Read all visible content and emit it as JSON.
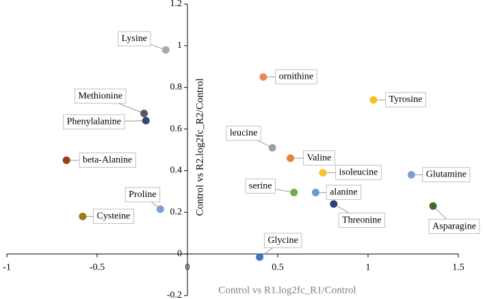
{
  "chart_data": {
    "type": "scatter",
    "xlabel": "Control vs R1.log2fc_R1/Control",
    "ylabel": "Control vs R2.log2fc_R2/Control",
    "labels": [
      "Lysine",
      "ornithine",
      "Tyrosine",
      "Methionine",
      "Phenylalanine",
      "leucine",
      "Valine",
      "beta-Alanine",
      "isoleucine",
      "Glutamine",
      "serine",
      "alanine",
      "Threonine",
      "Asparagine",
      "Proline",
      "Cysteine",
      "Glycine"
    ],
    "x": [
      -0.12,
      0.42,
      1.03,
      -0.24,
      -0.23,
      0.47,
      0.57,
      -0.67,
      0.75,
      1.24,
      0.59,
      0.71,
      0.81,
      1.36,
      -0.15,
      -0.58,
      0.4
    ],
    "y": [
      0.98,
      0.85,
      0.74,
      0.675,
      0.64,
      0.51,
      0.46,
      0.45,
      0.39,
      0.38,
      0.295,
      0.295,
      0.24,
      0.23,
      0.215,
      0.18,
      -0.015
    ],
    "colors": [
      "#aaaaaa",
      "#e8895a",
      "#f5c518",
      "#595959",
      "#2e4a7a",
      "#a0a0a0",
      "#e87f3a",
      "#9c3f12",
      "#f7c22a",
      "#7aa0d6",
      "#70ad47",
      "#6a9bd6",
      "#264478",
      "#3e6d2b",
      "#7d9fd3",
      "#9a7b10",
      "#4472c4"
    ],
    "xlim": [
      -1,
      1.5
    ],
    "xticks": [
      -1,
      -0.5,
      0,
      0.5,
      1,
      1.5
    ],
    "ylim": [
      -0.2,
      1.2
    ],
    "yticks": [
      -0.2,
      0,
      0.2,
      0.4,
      0.6,
      0.8,
      1,
      1.2
    ]
  }
}
